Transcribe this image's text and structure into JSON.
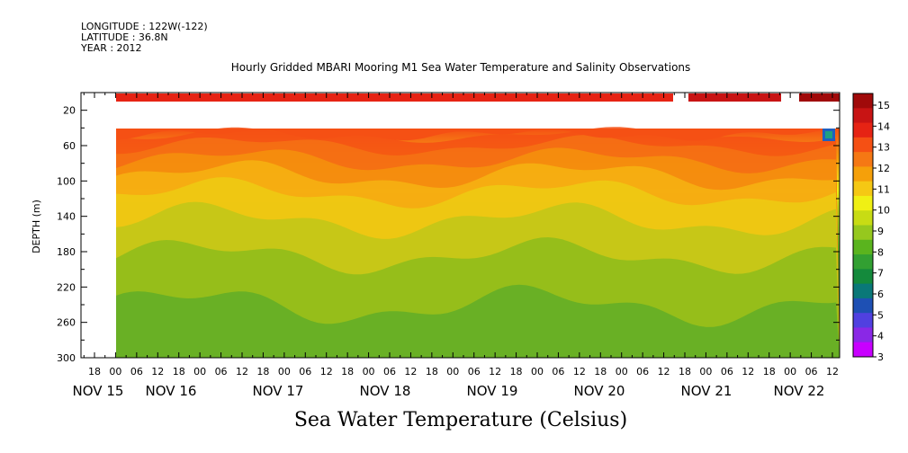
{
  "meta": {
    "longitude": "LONGITUDE : 122W(-122)",
    "latitude": "LATITUDE : 36.8N",
    "year": "YEAR : 2012"
  },
  "chart_data": {
    "type": "heatmap",
    "title": "Hourly Gridded MBARI Mooring M1 Sea Water Temperature and Salinity Observations",
    "xlabel": "",
    "ylabel": "DEPTH (m)",
    "colorbar_label": "Sea Water Temperature (Celsius)",
    "ylim": [
      300,
      0
    ],
    "y_ticks": [
      20,
      60,
      100,
      140,
      180,
      220,
      260,
      300
    ],
    "hour_ticks": [
      "18",
      "00",
      "06",
      "12",
      "18",
      "00",
      "06",
      "12",
      "18",
      "00",
      "06",
      "12",
      "18",
      "00",
      "06",
      "12",
      "18",
      "00",
      "06",
      "12",
      "18",
      "00",
      "06",
      "12",
      "18",
      "00",
      "06",
      "12",
      "18",
      "00",
      "06",
      "12",
      "18",
      "00",
      "06",
      "12"
    ],
    "day_labels": [
      "NOV 15",
      "NOV 16",
      "NOV 17",
      "NOV 18",
      "NOV 19",
      "NOV 20",
      "NOV 21",
      "NOV 22"
    ],
    "colorbar_ticks": [
      3,
      4,
      5,
      6,
      7,
      8,
      9,
      10,
      11,
      12,
      13,
      14,
      15
    ],
    "colorbar_colors": [
      "#c800ff",
      "#8a28e6",
      "#5040e0",
      "#1e50b4",
      "#0a7878",
      "#148a3c",
      "#32a032",
      "#5ab41e",
      "#96c81e",
      "#c8dc14",
      "#f0f014",
      "#f5c814",
      "#f5a00a",
      "#f57814",
      "#f55014",
      "#e62314",
      "#c81414",
      "#a00a0a"
    ],
    "depth_profile": [
      {
        "depth": 10,
        "value": 14.6
      },
      {
        "depth": 40,
        "value": 13.8
      },
      {
        "depth": 60,
        "value": 12.8
      },
      {
        "depth": 80,
        "value": 11.5
      },
      {
        "depth": 100,
        "value": 10.6
      },
      {
        "depth": 140,
        "value": 9.8
      },
      {
        "depth": 180,
        "value": 9.0
      },
      {
        "depth": 220,
        "value": 8.6
      },
      {
        "depth": 260,
        "value": 8.3
      },
      {
        "depth": 300,
        "value": 8.0
      }
    ]
  }
}
